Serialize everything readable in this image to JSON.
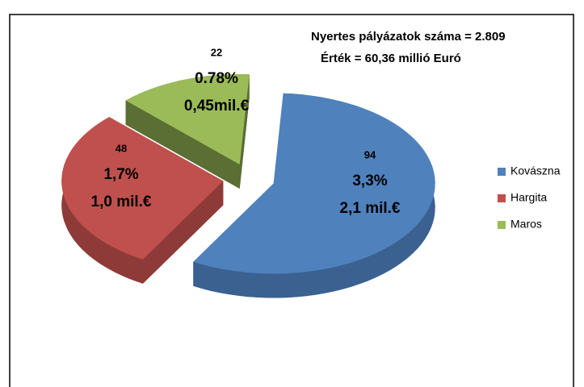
{
  "chart_data": {
    "type": "pie",
    "annotations": [
      "Nyertes pályázatok száma  = 2.809",
      "Érték = 60,36 millió Euró"
    ],
    "categories": [
      "Kovászna",
      "Hargita",
      "Maros"
    ],
    "values": [
      94,
      48,
      22
    ],
    "percent_labels": [
      "3,3%",
      "1,7%",
      "0.78%"
    ],
    "amount_labels": [
      "2,1 mil.€",
      "1,0 mil.€",
      "0,45mil.€"
    ],
    "colors": [
      "#4f81bd",
      "#c0504d",
      "#9bbb59"
    ],
    "side_colors": [
      "#3a6190",
      "#8e3a38",
      "#5b6e33"
    ],
    "legend": "right"
  }
}
